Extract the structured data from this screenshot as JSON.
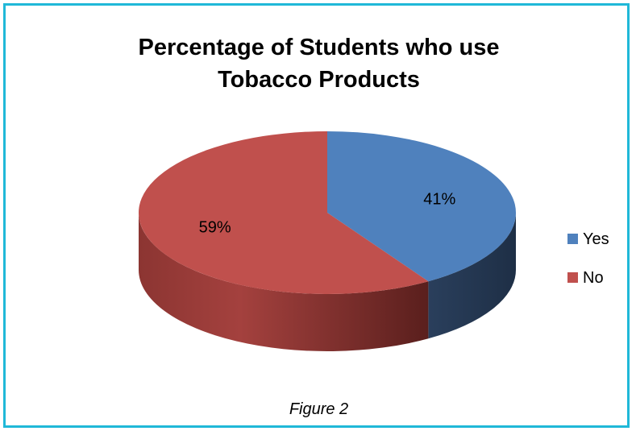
{
  "chart_data": {
    "type": "pie",
    "title_lines": [
      "Percentage of Students who use",
      "Tobacco Products"
    ],
    "categories": [
      "Yes",
      "No"
    ],
    "values": [
      41,
      59
    ],
    "data_labels": [
      "41%",
      "59%"
    ],
    "colors": [
      "#4f81bd",
      "#c0504d"
    ],
    "legend_position": "right",
    "style": "3d"
  },
  "caption": "Figure 2"
}
